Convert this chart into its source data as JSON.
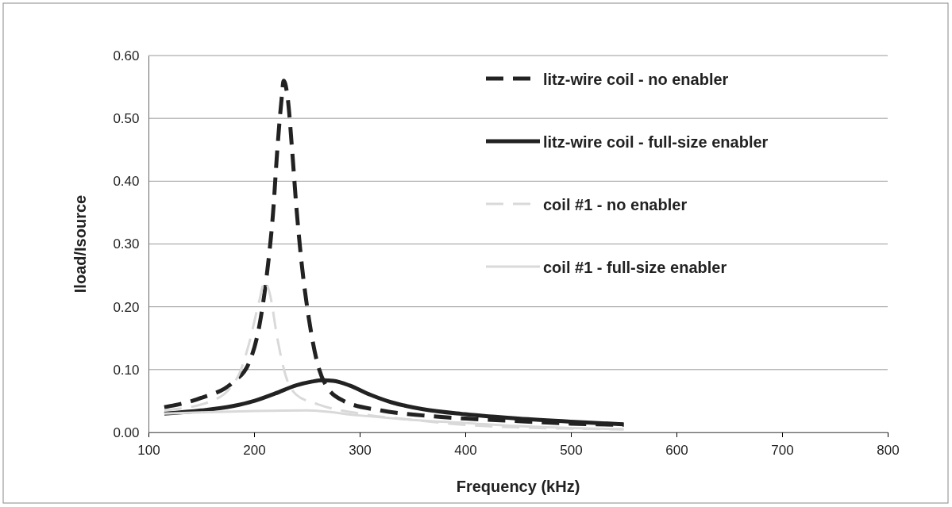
{
  "chart_data": {
    "type": "line",
    "xlabel": "Frequency (kHz)",
    "ylabel": "Iload/Isource",
    "xlim": [
      100,
      800
    ],
    "xticks": [
      100,
      200,
      300,
      400,
      500,
      600,
      700,
      800
    ],
    "ylim": [
      0,
      0.6
    ],
    "yticks": [
      {
        "value": 0,
        "label": "0.00"
      },
      {
        "value": 0.1,
        "label": "0.10"
      },
      {
        "value": 0.2,
        "label": "0.20"
      },
      {
        "value": 0.3,
        "label": "0.30"
      },
      {
        "value": 0.4,
        "label": "0.40"
      },
      {
        "value": 0.5,
        "label": "0.50"
      },
      {
        "value": 0.6,
        "label": "0.60"
      }
    ],
    "grid": "y",
    "legend": "top right",
    "marker": "none",
    "series": [
      {
        "name": "litz-wire coil - no enabler",
        "color": "#222222",
        "line_style": "dashed",
        "x": [
          115,
          150,
          180,
          195,
          205,
          212,
          218,
          222,
          226,
          228,
          232,
          236,
          240,
          245,
          252,
          260,
          268,
          285,
          320,
          360,
          400,
          450,
          500,
          550
        ],
        "values": [
          0.04,
          0.055,
          0.08,
          0.11,
          0.17,
          0.25,
          0.35,
          0.45,
          0.53,
          0.56,
          0.53,
          0.45,
          0.36,
          0.27,
          0.18,
          0.11,
          0.075,
          0.05,
          0.035,
          0.027,
          0.022,
          0.018,
          0.014,
          0.012
        ]
      },
      {
        "name": "litz-wire coil - full-size enabler",
        "color": "#222222",
        "line_style": "solid",
        "x": [
          115,
          150,
          180,
          200,
          220,
          240,
          255,
          265,
          275,
          290,
          310,
          330,
          360,
          400,
          450,
          500,
          550
        ],
        "values": [
          0.03,
          0.035,
          0.042,
          0.05,
          0.062,
          0.075,
          0.081,
          0.083,
          0.082,
          0.075,
          0.06,
          0.048,
          0.037,
          0.029,
          0.022,
          0.017,
          0.013
        ]
      },
      {
        "name": "coil #1 - no enabler",
        "color": "#d9d9d9",
        "line_style": "dashed",
        "x": [
          115,
          160,
          185,
          195,
          205,
          210,
          215,
          222,
          230,
          240,
          260,
          300,
          350,
          400,
          450,
          500,
          550
        ],
        "values": [
          0.035,
          0.05,
          0.09,
          0.14,
          0.21,
          0.24,
          0.22,
          0.15,
          0.09,
          0.06,
          0.045,
          0.03,
          0.02,
          0.012,
          0.008,
          0.006,
          0.005
        ]
      },
      {
        "name": "coil #1 - full-size enabler",
        "color": "#d9d9d9",
        "line_style": "solid",
        "x": [
          115,
          150,
          200,
          250,
          300,
          350,
          400,
          450,
          500,
          550
        ],
        "values": [
          0.03,
          0.032,
          0.034,
          0.035,
          0.027,
          0.02,
          0.015,
          0.01,
          0.007,
          0.005
        ]
      }
    ]
  }
}
